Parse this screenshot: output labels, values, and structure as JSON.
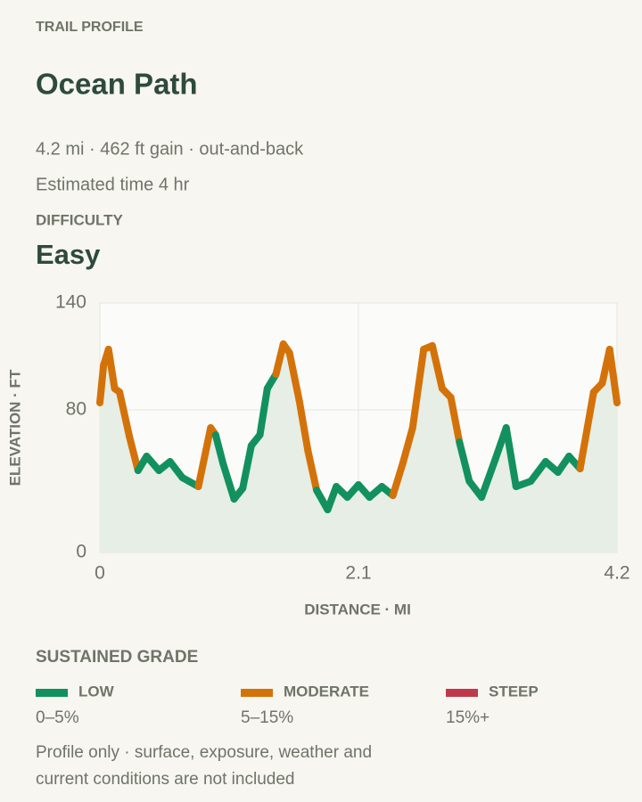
{
  "header": {
    "eyebrow": "TRAIL PROFILE",
    "title": "Ocean Path",
    "stats": "4.2 mi · 462 ft gain · out-and-back",
    "time": "Estimated time 4 hr",
    "difficulty_label": "DIFFICULTY",
    "difficulty": "Easy"
  },
  "chart_data": {
    "type": "line",
    "x": [
      0,
      0.03,
      0.07,
      0.12,
      0.16,
      0.24,
      0.31,
      0.38,
      0.48,
      0.57,
      0.67,
      0.8,
      0.9,
      0.94,
      1.0,
      1.09,
      1.16,
      1.23,
      1.3,
      1.36,
      1.43,
      1.49,
      1.54,
      1.62,
      1.69,
      1.76,
      1.85,
      1.92,
      2.01,
      2.1,
      2.19,
      2.29,
      2.38,
      2.46,
      2.54,
      2.63,
      2.7,
      2.78,
      2.85,
      2.92,
      3.0,
      3.1,
      3.21,
      3.3,
      3.38,
      3.5,
      3.62,
      3.72,
      3.81,
      3.9,
      4.01,
      4.08,
      4.14,
      4.2
    ],
    "values": [
      84,
      105,
      114,
      92,
      90,
      65,
      46,
      54,
      46,
      51,
      42,
      37,
      70,
      66,
      50,
      30,
      36,
      60,
      66,
      92,
      100,
      117,
      112,
      85,
      57,
      35,
      24,
      37,
      31,
      38,
      31,
      37,
      32,
      50,
      70,
      114,
      116,
      92,
      87,
      62,
      40,
      31,
      52,
      70,
      37,
      40,
      51,
      45,
      54,
      47,
      90,
      95,
      114,
      84
    ],
    "segment_colors": [
      "#d4720a",
      "#d4720a",
      "#d4720a",
      "#d4720a",
      "#d4720a",
      "#d4720a",
      "#12915f",
      "#12915f",
      "#12915f",
      "#12915f",
      "#12915f",
      "#d4720a",
      "#d4720a",
      "#12915f",
      "#12915f",
      "#12915f",
      "#12915f",
      "#12915f",
      "#12915f",
      "#12915f",
      "#d4720a",
      "#d4720a",
      "#d4720a",
      "#d4720a",
      "#d4720a",
      "#12915f",
      "#12915f",
      "#12915f",
      "#12915f",
      "#12915f",
      "#12915f",
      "#12915f",
      "#d4720a",
      "#d4720a",
      "#d4720a",
      "#d4720a",
      "#d4720a",
      "#d4720a",
      "#d4720a",
      "#12915f",
      "#12915f",
      "#12915f",
      "#12915f",
      "#12915f",
      "#12915f",
      "#12915f",
      "#12915f",
      "#12915f",
      "#12915f",
      "#d4720a",
      "#d4720a",
      "#d4720a",
      "#d4720a"
    ],
    "area_color": "#e6eee6",
    "xlim": [
      0,
      4.2
    ],
    "xticks": [
      0,
      2.1,
      4.2
    ],
    "ylim": [
      0,
      140
    ],
    "yticks": [
      0,
      80,
      140
    ],
    "grid": true,
    "xlabel": "DISTANCE · MI",
    "ylabel": "ELEVATION · FT",
    "legend_title": "SUSTAINED GRADE",
    "legend": [
      {
        "name": "LOW",
        "range": "0–5%",
        "color": "#12915f"
      },
      {
        "name": "MODERATE",
        "range": "5–15%",
        "color": "#d4720a"
      },
      {
        "name": "STEEP",
        "range": "15%+",
        "color": "#c0394a"
      }
    ],
    "note": [
      "Profile only · surface, exposure, weather and",
      "current conditions are not included"
    ]
  }
}
